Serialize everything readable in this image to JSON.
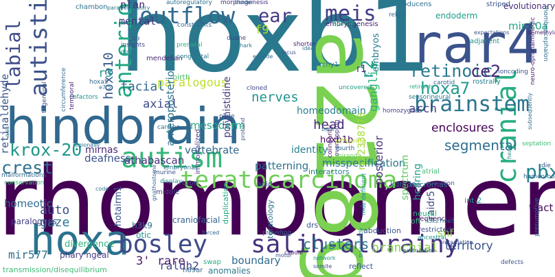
{
  "words": [
    {
      "text": "hoxb1",
      "color": "#2a788e"
    },
    {
      "text": "rhombomere",
      "color": "#440154"
    },
    {
      "text": "a218g",
      "color": "#7ad151"
    },
    {
      "text": "hindbrain",
      "color": "#31688e"
    },
    {
      "text": "rar4",
      "color": "#3b528b"
    },
    {
      "text": "hoxa",
      "color": "#2c728e"
    },
    {
      "text": "bosley",
      "color": "#3e4a89"
    },
    {
      "text": "salih-alorainy",
      "color": "#46327e"
    },
    {
      "text": "teratocarcinoma",
      "color": "#6ece58"
    },
    {
      "text": "autism",
      "color": "#35b779"
    },
    {
      "text": "cranial",
      "color": "#26ad81"
    },
    {
      "text": "outflow",
      "color": "#31688e"
    },
    {
      "text": "autistic",
      "color": "#3b528b"
    },
    {
      "text": "anterior",
      "color": "#22a884"
    },
    {
      "text": "labial",
      "color": "#3e4a89"
    },
    {
      "text": "ear",
      "color": "#443983"
    },
    {
      "text": "meis",
      "color": "#433e85"
    },
    {
      "text": "retinoic",
      "color": "#287c8e"
    },
    {
      "text": "hoxa7",
      "color": "#1f988b"
    },
    {
      "text": "brainstem",
      "color": "#2a768e"
    },
    {
      "text": "ce2",
      "color": "#482475"
    },
    {
      "text": "pbx",
      "color": "#25838e"
    },
    {
      "text": "krox-20",
      "color": "#1f968b"
    },
    {
      "text": "crest",
      "color": "#2d708e"
    },
    {
      "text": "retinaldehyde",
      "color": "#39568c"
    },
    {
      "text": "r2",
      "color": "#1f9e89"
    },
    {
      "text": "head",
      "color": "#472c7a"
    },
    {
      "text": "f9",
      "color": "#b5de2b"
    },
    {
      "text": "hoxa10",
      "color": "#38588c"
    },
    {
      "text": "r3",
      "color": "#1f9a8a"
    },
    {
      "text": "mental",
      "color": "#453781"
    },
    {
      "text": "plan",
      "color": "#482173"
    },
    {
      "text": "facial",
      "color": "#31688e"
    },
    {
      "text": "paralogous",
      "color": "#bddf26"
    },
    {
      "text": "axial",
      "color": "#3e4a89"
    },
    {
      "text": "ganglia",
      "color": "#2fb47c"
    },
    {
      "text": "arch",
      "color": "#414487"
    },
    {
      "text": "mir-10a",
      "color": "#22a785"
    },
    {
      "text": "r1",
      "color": "#482878"
    },
    {
      "text": "embryos",
      "color": "#287d8e"
    },
    {
      "text": "nerves",
      "color": "#1f958b"
    },
    {
      "text": "segmental",
      "color": "#2e6e8e"
    },
    {
      "text": "enclosures",
      "color": "#440154"
    },
    {
      "text": "clusters",
      "color": "#2a788e"
    },
    {
      "text": "branchial",
      "color": "#86d549"
    },
    {
      "text": "territory",
      "color": "#3b528b"
    },
    {
      "text": "posterior",
      "color": "#46337e"
    },
    {
      "text": "mir577",
      "color": "#2d718e"
    },
    {
      "text": "raldh2",
      "color": "#414487"
    },
    {
      "text": "gaze",
      "color": "#2a778e"
    },
    {
      "text": "auto",
      "color": "#3c4f8a"
    },
    {
      "text": "homeotic",
      "color": "#306a8e"
    },
    {
      "text": "athabascan",
      "color": "#472f7d"
    },
    {
      "text": "deafness",
      "color": "#3b528b"
    },
    {
      "text": "patterning",
      "color": "#2c728e"
    },
    {
      "text": "misspecification",
      "color": "#2a768e"
    },
    {
      "text": "identity",
      "color": "#27808e"
    },
    {
      "text": "vertebrate",
      "color": "#31688e"
    },
    {
      "text": "mirnas",
      "color": "#482677"
    },
    {
      "text": "mesoderm",
      "color": "#22a785"
    },
    {
      "text": "anteroposterior",
      "color": "#2c738e"
    },
    {
      "text": "polyhistidine",
      "color": "#443a83"
    },
    {
      "text": "homeodomain",
      "color": "#277f8e"
    },
    {
      "text": "rs72338773",
      "color": "#a2da37"
    },
    {
      "text": "spectrum",
      "color": "#5ec962"
    },
    {
      "text": "hearing",
      "color": "#1fa088"
    },
    {
      "text": "boundary",
      "color": "#306a8e"
    },
    {
      "text": "3' rare",
      "color": "#481a6c"
    },
    {
      "text": "shf",
      "color": "#8bd646"
    },
    {
      "text": "tract",
      "color": "#46085c"
    },
    {
      "text": "raidr5",
      "color": "#3f4788"
    },
    {
      "text": "hoxb1b",
      "color": "#450559"
    },
    {
      "text": "hotairm1",
      "color": "#3a548c"
    },
    {
      "text": "h3k9",
      "color": "#2c728e"
    },
    {
      "text": "otic",
      "color": "#21918c"
    },
    {
      "text": "phary ngeal",
      "color": "#453781"
    },
    {
      "text": "divergence",
      "color": "#2fb47c"
    },
    {
      "text": "paralogues",
      "color": "#433e85"
    },
    {
      "text": "int-2",
      "color": "#1e9b8a"
    },
    {
      "text": "kdm3a",
      "color": "#2b748e"
    },
    {
      "text": "atrial",
      "color": "#3dbc74"
    },
    {
      "text": "micrornas",
      "color": "#2e6f8e"
    },
    {
      "text": "interactors",
      "color": "#27808e"
    },
    {
      "text": "acid",
      "color": "#3b518b"
    },
    {
      "text": "middle",
      "color": "#404588"
    },
    {
      "text": "tube",
      "color": "#3d4d8a"
    },
    {
      "text": "immortalized",
      "color": "#433d84"
    },
    {
      "text": "craniofacial",
      "color": "#32658e"
    },
    {
      "text": "duplication",
      "color": "#22a884"
    },
    {
      "text": "teratology",
      "color": "#2c728e"
    },
    {
      "text": "drs",
      "color": "#3b528b"
    },
    {
      "text": "transmission/disequilibrium",
      "color": "#3dbc74"
    },
    {
      "text": "anomalies",
      "color": "#2a788e"
    },
    {
      "text": "swap",
      "color": "#26ad81"
    },
    {
      "text": "reflect",
      "color": "#38588c"
    },
    {
      "text": "h69ar",
      "color": "#31688e"
    },
    {
      "text": "abduction",
      "color": "#3a548c"
    },
    {
      "text": "restricted",
      "color": "#3c4f8a"
    },
    {
      "text": "sequences",
      "color": "#48186a"
    },
    {
      "text": "oft",
      "color": "#35b779"
    },
    {
      "text": "neural",
      "color": "#2ab07f"
    },
    {
      "text": "evolutionary",
      "color": "#482979"
    },
    {
      "text": "endoderm",
      "color": "#1e9c89"
    },
    {
      "text": "morphogenesis",
      "color": "#46307e"
    },
    {
      "text": "autoregulatory",
      "color": "#2d708e"
    },
    {
      "text": "chambon",
      "color": "#2c728e"
    },
    {
      "text": "constraints",
      "color": "#31688e"
    },
    {
      "text": "embryogenesis",
      "color": "#482475"
    },
    {
      "text": "duane",
      "color": "#423f85"
    },
    {
      "text": "abducens",
      "color": "#2e6e8e"
    },
    {
      "text": "striped",
      "color": "#3b528b"
    },
    {
      "text": "insights",
      "color": "#3e4989"
    },
    {
      "text": "prenatal",
      "color": "#26ad81"
    },
    {
      "text": "mendelian",
      "color": "#482677"
    },
    {
      "text": "congenital",
      "color": "#2a788e"
    },
    {
      "text": "birth",
      "color": "#4ac16d"
    },
    {
      "text": "cardiac",
      "color": "#2c728e"
    },
    {
      "text": "plate",
      "color": "#3b528b"
    },
    {
      "text": "cloned",
      "color": "#3f4889"
    },
    {
      "text": "uncovered",
      "color": "#1f9a8a"
    },
    {
      "text": "rchy1",
      "color": "#2a788e"
    },
    {
      "text": "sensorineural",
      "color": "#2a788e"
    },
    {
      "text": "homozygous",
      "color": "#414487"
    },
    {
      "text": "carotid",
      "color": "#31688e"
    },
    {
      "text": "rostrally",
      "color": "#287c8e"
    },
    {
      "text": "noncoding",
      "color": "#3b528b"
    },
    {
      "text": "rhombencephalon",
      "color": "#2e6e8e"
    },
    {
      "text": "neuro-ophthalmologic",
      "color": "#481769"
    },
    {
      "text": "subsequently",
      "color": "#2c728e"
    },
    {
      "text": "septation",
      "color": "#3dbc74"
    },
    {
      "text": "die",
      "color": "#3b528b"
    },
    {
      "text": "homeo-box",
      "color": "#31688e"
    },
    {
      "text": "colinearity",
      "color": "#471063"
    },
    {
      "text": "overlapping",
      "color": "#46307e"
    },
    {
      "text": "fourth",
      "color": "#31688e"
    },
    {
      "text": "miranda",
      "color": "#6ece58"
    },
    {
      "text": "offspring",
      "color": "#b5de2b"
    },
    {
      "text": "bass",
      "color": "#2a788e"
    },
    {
      "text": "trigeminal",
      "color": "#3b528b"
    },
    {
      "text": "circumference",
      "color": "#31688e"
    },
    {
      "text": "cofactors",
      "color": "#21918c"
    },
    {
      "text": "temporal",
      "color": "#482576"
    },
    {
      "text": "axis",
      "color": "#2c728e"
    },
    {
      "text": "malformations",
      "color": "#31688e"
    },
    {
      "text": "conservation",
      "color": "#3dbc74"
    },
    {
      "text": "code",
      "color": "#2a788e"
    },
    {
      "text": "display",
      "color": "#21918c"
    },
    {
      "text": "murine",
      "color": "#3b528b"
    },
    {
      "text": "embryonal",
      "color": "#2c728e"
    },
    {
      "text": "p19",
      "color": "#3b528b"
    },
    {
      "text": "hoxa5",
      "color": "#31688e"
    },
    {
      "text": "e7.5",
      "color": "#2c728e"
    },
    {
      "text": "retinoids",
      "color": "#26ad81"
    },
    {
      "text": "motor",
      "color": "#3b528b"
    },
    {
      "text": "network",
      "color": "#21918c"
    },
    {
      "text": "somite",
      "color": "#3b528b"
    },
    {
      "text": "caudal",
      "color": "#481769"
    },
    {
      "text": "ancestral",
      "color": "#21918c"
    },
    {
      "text": "defects",
      "color": "#3b528b"
    },
    {
      "text": "presumptive",
      "color": "#2c728e"
    },
    {
      "text": "gastrulation",
      "color": "#3b528b"
    },
    {
      "text": "providing",
      "color": "#31688e"
    },
    {
      "text": "spatial",
      "color": "#2ab07f"
    },
    {
      "text": "relies",
      "color": "#31688e"
    },
    {
      "text": "shorter",
      "color": "#482475"
    },
    {
      "text": "idea",
      "color": "#2c728e"
    },
    {
      "text": "locus",
      "color": "#3b528b"
    },
    {
      "text": "encode",
      "color": "#31688e"
    },
    {
      "text": "shark",
      "color": "#2a788e"
    },
    {
      "text": "expectations",
      "color": "#3b528b"
    },
    {
      "text": "adjacent",
      "color": "#21918c"
    },
    {
      "text": "doile",
      "color": "#2c728e"
    },
    {
      "text": "para-regulatory",
      "color": "#2a788e"
    },
    {
      "text": "retardation",
      "color": "#3b528b"
    },
    {
      "text": "forced",
      "color": "#31688e"
    },
    {
      "text": "mdz-deficient",
      "color": "#21918c"
    },
    {
      "text": "transiently",
      "color": "#2a788e"
    },
    {
      "text": "h3k27me3",
      "color": "#2c728e"
    },
    {
      "text": "evolution",
      "color": "#3b528b"
    },
    {
      "text": "heart",
      "color": "#21918c"
    },
    {
      "text": "regionally",
      "color": "#2c728e"
    },
    {
      "text": "border",
      "color": "#31688e"
    },
    {
      "text": "di-methylation",
      "color": "#482475"
    },
    {
      "text": "proband",
      "color": "#3b528b"
    },
    {
      "text": "gnathostome",
      "color": "#31688e"
    },
    {
      "text": "glossopharyngeal",
      "color": "#2c728e"
    }
  ]
}
